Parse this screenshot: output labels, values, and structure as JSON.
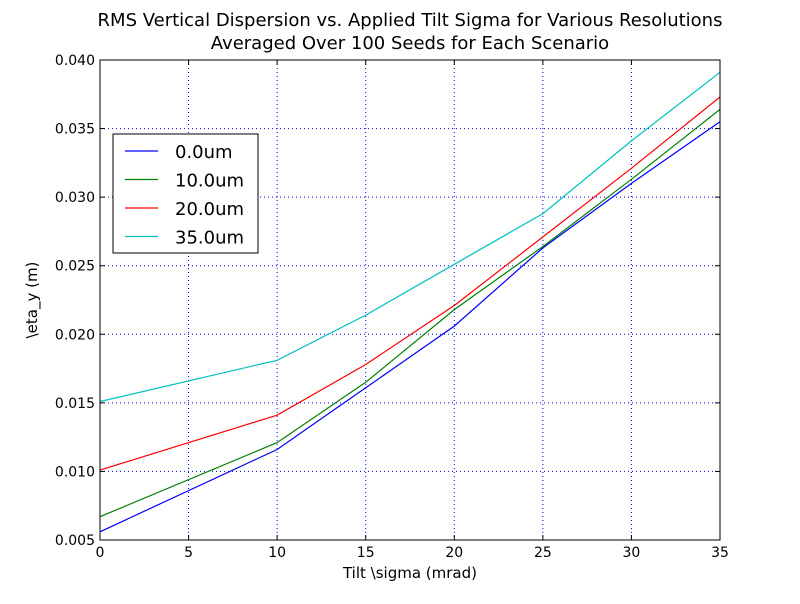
{
  "chart_data": {
    "type": "line",
    "title_lines": [
      "RMS Vertical Dispersion vs. Applied Tilt Sigma for Various Resolutions",
      "Averaged Over 100 Seeds for Each Scenario"
    ],
    "xlabel": "Tilt \\sigma (mrad)",
    "ylabel": "\\eta_y (m)",
    "xlim": [
      0,
      35
    ],
    "ylim": [
      0.005,
      0.04
    ],
    "xticks": [
      0,
      5,
      10,
      15,
      20,
      25,
      30,
      35
    ],
    "xtick_labels": [
      "0",
      "5",
      "10",
      "15",
      "20",
      "25",
      "30",
      "35"
    ],
    "yticks": [
      0.005,
      0.01,
      0.015,
      0.02,
      0.025,
      0.03,
      0.035,
      0.04
    ],
    "ytick_labels": [
      "0.005",
      "0.010",
      "0.015",
      "0.020",
      "0.025",
      "0.030",
      "0.035",
      "0.040"
    ],
    "grid": true,
    "legend_position": "upper-left",
    "x": [
      0,
      10,
      15,
      20,
      25,
      30,
      35
    ],
    "series": [
      {
        "name": "0.0um",
        "color": "#0000ff",
        "values": [
          0.0056,
          0.0116,
          0.0161,
          0.0206,
          0.0263,
          0.031,
          0.0355
        ]
      },
      {
        "name": "10.0um",
        "color": "#008000",
        "values": [
          0.0067,
          0.0121,
          0.0165,
          0.0218,
          0.0264,
          0.0313,
          0.0364
        ]
      },
      {
        "name": "20.0um",
        "color": "#ff0000",
        "values": [
          0.0101,
          0.0141,
          0.0178,
          0.0221,
          0.0271,
          0.0321,
          0.0373
        ]
      },
      {
        "name": "35.0um",
        "color": "#00bfbf",
        "values": [
          0.0151,
          0.0181,
          0.0214,
          0.0251,
          0.0288,
          0.0341,
          0.0391
        ]
      }
    ]
  }
}
